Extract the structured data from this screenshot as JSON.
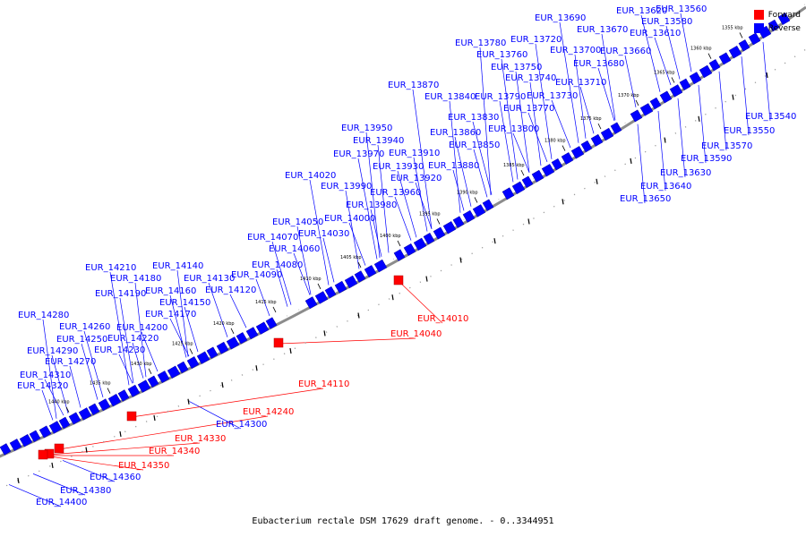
{
  "colors": {
    "forward": "#ff0000",
    "reverse": "#0000ff",
    "backbone": "#8c8c8c"
  },
  "legend": {
    "forward_label": "Forward",
    "reverse_label": "Reverse"
  },
  "caption": "Eubacterium rectale DSM 17629 draft genome. - 0..3344951",
  "scale_ticks": [
    "1355 kbp",
    "1360 kbp",
    "1365 kbp",
    "1370 kbp",
    "1375 kbp",
    "1380 kbp",
    "1385 kbp",
    "1390 kbp",
    "1395 kbp",
    "1400 kbp",
    "1405 kbp",
    "1410 kbp",
    "1415 kbp",
    "1420 kbp",
    "1425 kbp",
    "1430 kbp",
    "1435 kbp",
    "1440 kbp"
  ],
  "reverse_labels_upper": [
    "EUR_13560",
    "EUR_13580",
    "EUR_13610",
    "EUR_13620",
    "EUR_13660",
    "EUR_13670",
    "EUR_13680",
    "EUR_13690",
    "EUR_13700",
    "EUR_13710",
    "EUR_13720",
    "EUR_13730",
    "EUR_13740",
    "EUR_13750",
    "EUR_13760",
    "EUR_13770",
    "EUR_13780",
    "EUR_13790",
    "EUR_13800",
    "EUR_13830",
    "EUR_13840",
    "EUR_13850",
    "EUR_13860",
    "EUR_13870",
    "EUR_13880",
    "EUR_13910",
    "EUR_13920",
    "EUR_13930",
    "EUR_13940",
    "EUR_13950",
    "EUR_13960",
    "EUR_13970",
    "EUR_13980",
    "EUR_13990",
    "EUR_14000",
    "EUR_14020",
    "EUR_14030",
    "EUR_14050",
    "EUR_14060",
    "EUR_14070",
    "EUR_14080",
    "EUR_14090",
    "EUR_14120",
    "EUR_14130",
    "EUR_14140",
    "EUR_14150",
    "EUR_14160",
    "EUR_14170",
    "EUR_14180",
    "EUR_14190",
    "EUR_14200",
    "EUR_14210",
    "EUR_14220",
    "EUR_14230",
    "EUR_14250",
    "EUR_14260",
    "EUR_14270",
    "EUR_14280",
    "EUR_14290",
    "EUR_14310",
    "EUR_14320"
  ],
  "reverse_labels_lower": [
    "EUR_13540",
    "EUR_13550",
    "EUR_13570",
    "EUR_13590",
    "EUR_13630",
    "EUR_13640",
    "EUR_13650",
    "EUR_14300",
    "EUR_14360",
    "EUR_14380",
    "EUR_14400"
  ],
  "forward_labels": [
    "EUR_14010",
    "EUR_14040",
    "EUR_14110",
    "EUR_14240",
    "EUR_14330",
    "EUR_14340",
    "EUR_14350"
  ]
}
